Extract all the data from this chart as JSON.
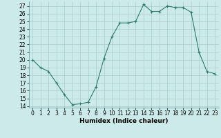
{
  "x": [
    0,
    1,
    2,
    3,
    4,
    5,
    6,
    7,
    8,
    9,
    10,
    11,
    12,
    13,
    14,
    15,
    16,
    17,
    18,
    19,
    20,
    21,
    22,
    23
  ],
  "y": [
    20,
    19,
    18.5,
    17,
    15.5,
    14.2,
    14.3,
    14.5,
    16.5,
    20.2,
    23.0,
    24.8,
    24.8,
    25.0,
    27.2,
    26.3,
    26.3,
    27.0,
    26.8,
    26.8,
    26.2,
    21.0,
    18.5,
    18.2
  ],
  "xlabel": "Humidex (Indice chaleur)",
  "xlim": [
    -0.5,
    23.5
  ],
  "ylim": [
    13.8,
    27.6
  ],
  "yticks": [
    14,
    15,
    16,
    17,
    18,
    19,
    20,
    21,
    22,
    23,
    24,
    25,
    26,
    27
  ],
  "xticks": [
    0,
    1,
    2,
    3,
    4,
    5,
    6,
    7,
    8,
    9,
    10,
    11,
    12,
    13,
    14,
    15,
    16,
    17,
    18,
    19,
    20,
    21,
    22,
    23
  ],
  "line_color": "#2a7a6a",
  "marker": "+",
  "bg_color": "#cceaea",
  "grid_color": "#aacccc",
  "label_fontsize": 6.5,
  "tick_fontsize": 5.5
}
